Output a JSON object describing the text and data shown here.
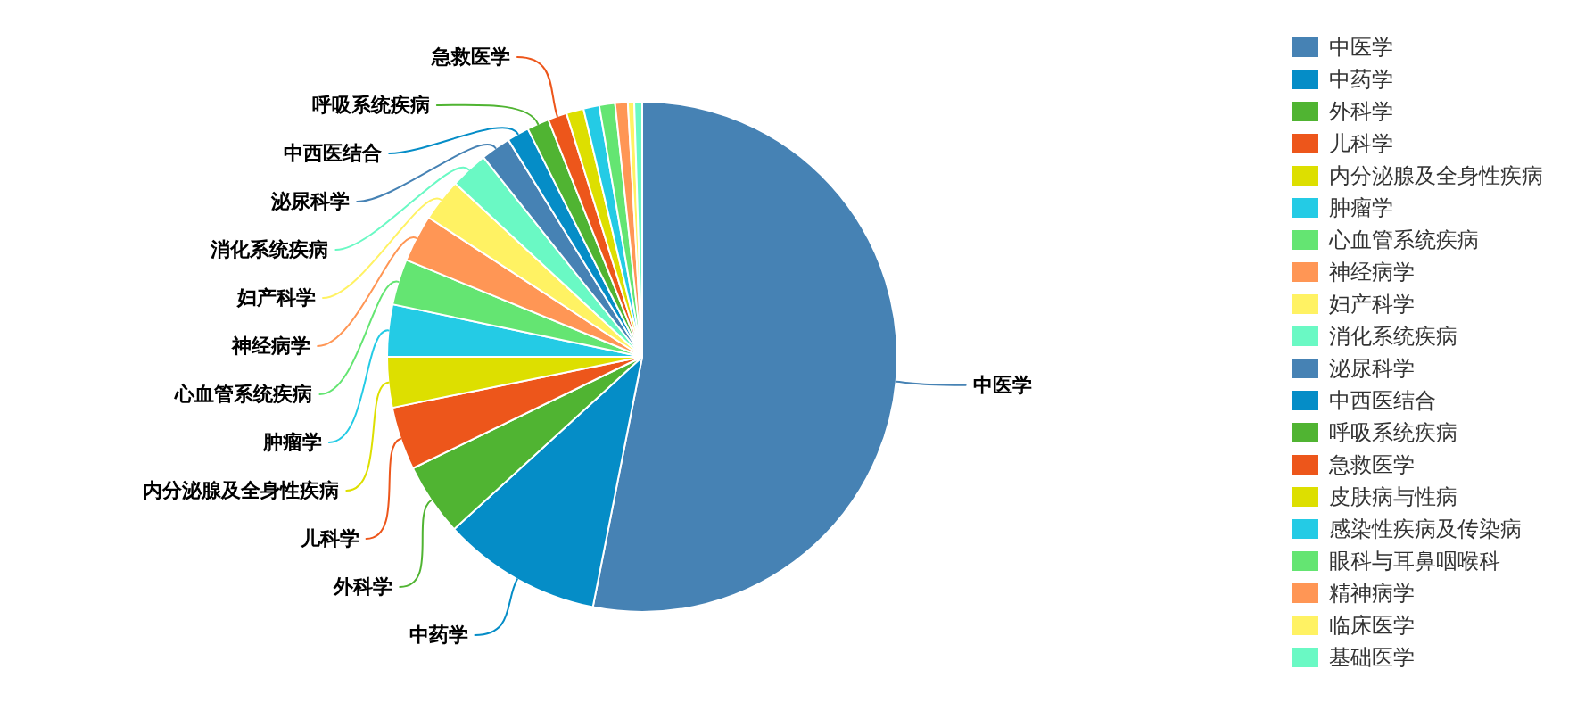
{
  "chart_data": {
    "type": "pie",
    "categories": [
      "中医学",
      "中药学",
      "外科学",
      "儿科学",
      "内分泌腺及全身性疾病",
      "肿瘤学",
      "心血管系统疾病",
      "神经病学",
      "妇产科学",
      "消化系统疾病",
      "泌尿科学",
      "中西医结合",
      "呼吸系统疾病",
      "急救医学",
      "皮肤病与性病",
      "感染性疾病及传染病",
      "眼科与耳鼻咽喉科",
      "精神病学",
      "临床医学",
      "基础医学"
    ],
    "values": [
      53.1,
      10.1,
      4.6,
      4.0,
      3.2,
      3.3,
      2.9,
      3.0,
      2.7,
      2.4,
      1.9,
      1.4,
      1.4,
      1.2,
      1.1,
      1.0,
      1.0,
      0.8,
      0.4,
      0.5
    ],
    "colors": [
      "#4682b4",
      "#058dc7",
      "#50b432",
      "#ed561b",
      "#dddf00",
      "#24cbe5",
      "#64e572",
      "#ff9655",
      "#fff263",
      "#6af9c4",
      "#4682b4",
      "#058dc7",
      "#50b432",
      "#ed561b",
      "#dddf00",
      "#24cbe5",
      "#64e572",
      "#ff9655",
      "#fff263",
      "#6af9c4"
    ],
    "legend": "right"
  }
}
